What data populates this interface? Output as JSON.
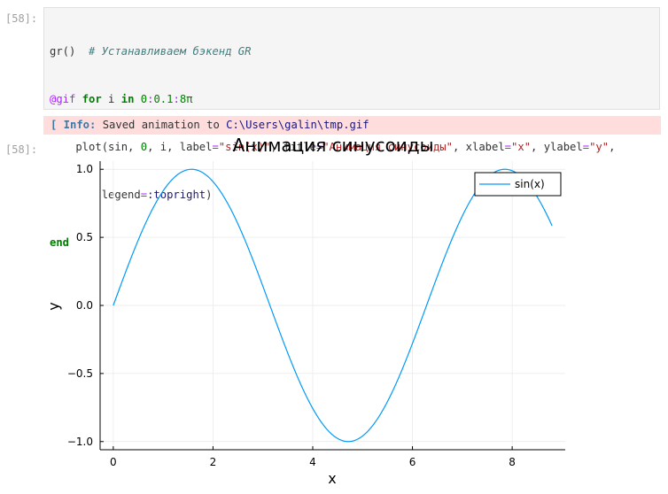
{
  "cell": {
    "input_prompt": "[58]:",
    "output_prompt": "[58]:",
    "code": {
      "line1_call": "gr()",
      "line1_comment": "# Устанавливаем бэкенд GR",
      "line2_macro": "@gif",
      "line2_for": "for",
      "line2_var": " i ",
      "line2_in": "in",
      "line2_range_start": "0",
      "line2_colon1": ":",
      "line2_step": "0.1",
      "line2_colon2": ":",
      "line2_end": "8π",
      "line3_pre": "    plot(sin, ",
      "line3_zero": "0",
      "line3_mid1": ", i, label",
      "line3_eq1": "=",
      "line3_label": "\"sin(x)\"",
      "line3_mid2": ", title",
      "line3_eq2": "=",
      "line3_title": "\"Анимация синусоиды\"",
      "line3_mid3": ", xlabel",
      "line3_eq3": "=",
      "line3_xlabel": "\"x\"",
      "line3_mid4": ", ylabel",
      "line3_eq4": "=",
      "line3_ylabel": "\"y\"",
      "line3_tail": ",",
      "line4_pre": "        legend",
      "line4_eq": "=",
      "line4_sym": ":topright",
      "line4_tail": ")",
      "line5_end": "end"
    },
    "info": {
      "label": "[ Info:",
      "text": " Saved animation to ",
      "path": "C:\\Users\\galin\\tmp.gif"
    }
  },
  "chart_data": {
    "type": "line",
    "title": "Анимация синусоиды",
    "xlabel": "x",
    "ylabel": "y",
    "function": "sin",
    "x_range": [
      0,
      8.8
    ],
    "xlim": [
      -0.264,
      9.064
    ],
    "ylim": [
      -1.06,
      1.06
    ],
    "x_ticks": [
      "0",
      "2",
      "4",
      "6",
      "8"
    ],
    "y_ticks": [
      "1.0",
      "0.5",
      "0.0",
      "−0.5",
      "−1.0"
    ],
    "x_tick_values": [
      0,
      2,
      4,
      6,
      8
    ],
    "y_tick_values": [
      1.0,
      0.5,
      0.0,
      -0.5,
      -1.0
    ],
    "grid": true,
    "legend_position": "top-right",
    "series": [
      {
        "name": "sin(x)",
        "color": "#009af9",
        "x": [
          0,
          0.4,
          0.8,
          1.2,
          1.6,
          2.0,
          2.4,
          2.8,
          3.2,
          3.6,
          4.0,
          4.4,
          4.8,
          5.2,
          5.6,
          6.0,
          6.4,
          6.8,
          7.2,
          7.6,
          8.0,
          8.4,
          8.8
        ],
        "values": [
          0.0,
          0.389,
          0.717,
          0.932,
          1.0,
          0.909,
          0.675,
          0.335,
          -0.058,
          -0.443,
          -0.757,
          -0.952,
          -0.996,
          -0.883,
          -0.631,
          -0.279,
          0.117,
          0.494,
          0.794,
          0.968,
          0.989,
          0.855,
          0.585
        ]
      }
    ]
  }
}
